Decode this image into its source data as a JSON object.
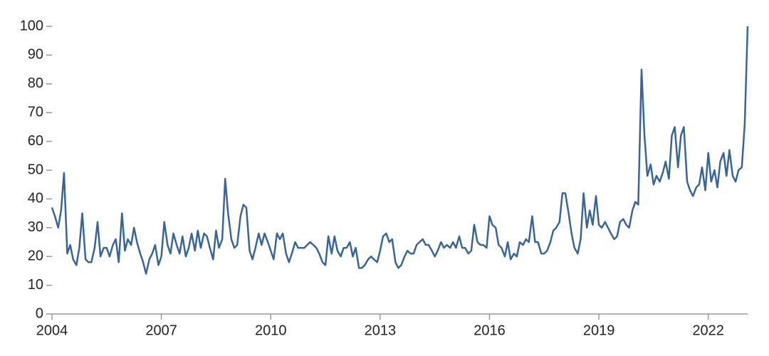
{
  "chart_data": {
    "type": "line",
    "color": "#37659a",
    "x": [
      2004,
      2004.08,
      2004.17,
      2004.25,
      2004.33,
      2004.42,
      2004.5,
      2004.58,
      2004.67,
      2004.75,
      2004.83,
      2004.92,
      2005,
      2005.08,
      2005.17,
      2005.25,
      2005.33,
      2005.42,
      2005.5,
      2005.58,
      2005.67,
      2005.75,
      2005.83,
      2005.92,
      2006,
      2006.08,
      2006.17,
      2006.25,
      2006.33,
      2006.42,
      2006.5,
      2006.58,
      2006.67,
      2006.75,
      2006.83,
      2006.92,
      2007,
      2007.08,
      2007.17,
      2007.25,
      2007.33,
      2007.42,
      2007.5,
      2007.58,
      2007.67,
      2007.75,
      2007.83,
      2007.92,
      2008,
      2008.08,
      2008.17,
      2008.25,
      2008.33,
      2008.42,
      2008.5,
      2008.58,
      2008.67,
      2008.75,
      2008.83,
      2008.92,
      2009,
      2009.08,
      2009.17,
      2009.25,
      2009.33,
      2009.42,
      2009.5,
      2009.58,
      2009.67,
      2009.75,
      2009.83,
      2009.92,
      2010,
      2010.08,
      2010.17,
      2010.25,
      2010.33,
      2010.42,
      2010.5,
      2010.58,
      2010.67,
      2010.75,
      2010.83,
      2010.92,
      2011,
      2011.08,
      2011.17,
      2011.25,
      2011.33,
      2011.42,
      2011.5,
      2011.58,
      2011.67,
      2011.75,
      2011.83,
      2011.92,
      2012,
      2012.08,
      2012.17,
      2012.25,
      2012.33,
      2012.42,
      2012.5,
      2012.58,
      2012.67,
      2012.75,
      2012.83,
      2012.92,
      2013,
      2013.08,
      2013.17,
      2013.25,
      2013.33,
      2013.42,
      2013.5,
      2013.58,
      2013.67,
      2013.75,
      2013.83,
      2013.92,
      2014,
      2014.08,
      2014.17,
      2014.25,
      2014.33,
      2014.42,
      2014.5,
      2014.58,
      2014.67,
      2014.75,
      2014.83,
      2014.92,
      2015,
      2015.08,
      2015.17,
      2015.25,
      2015.33,
      2015.42,
      2015.5,
      2015.58,
      2015.67,
      2015.75,
      2015.83,
      2015.92,
      2016,
      2016.08,
      2016.17,
      2016.25,
      2016.33,
      2016.42,
      2016.5,
      2016.58,
      2016.67,
      2016.75,
      2016.83,
      2016.92,
      2017,
      2017.08,
      2017.17,
      2017.25,
      2017.33,
      2017.42,
      2017.5,
      2017.58,
      2017.67,
      2017.75,
      2017.83,
      2017.92,
      2018,
      2018.08,
      2018.17,
      2018.25,
      2018.33,
      2018.42,
      2018.5,
      2018.58,
      2018.67,
      2018.75,
      2018.83,
      2018.92,
      2019,
      2019.08,
      2019.17,
      2019.25,
      2019.33,
      2019.42,
      2019.5,
      2019.58,
      2019.67,
      2019.75,
      2019.83,
      2019.92,
      2020,
      2020.08,
      2020.17,
      2020.25,
      2020.33,
      2020.42,
      2020.5,
      2020.58,
      2020.67,
      2020.75,
      2020.83,
      2020.92,
      2021,
      2021.08,
      2021.17,
      2021.25,
      2021.33,
      2021.42,
      2021.5,
      2021.58,
      2021.67,
      2021.75,
      2021.83,
      2021.92,
      2022,
      2022.08,
      2022.17,
      2022.25,
      2022.33,
      2022.42,
      2022.5,
      2022.58,
      2022.67,
      2022.75,
      2022.83,
      2022.92,
      2023,
      2023.08
    ],
    "values": [
      37,
      34,
      30,
      36,
      49,
      21,
      24,
      19,
      17,
      23,
      35,
      19,
      18,
      18,
      23,
      32,
      20,
      23,
      23,
      20,
      24,
      26,
      18,
      35,
      22,
      26,
      24,
      30,
      25,
      21,
      18,
      14,
      19,
      21,
      24,
      17,
      20,
      32,
      24,
      21,
      28,
      24,
      21,
      27,
      20,
      23,
      28,
      22,
      29,
      23,
      28,
      27,
      23,
      19,
      29,
      23,
      26,
      47,
      35,
      26,
      23,
      24,
      34,
      38,
      37,
      22,
      19,
      23,
      28,
      24,
      28,
      25,
      22,
      19,
      28,
      26,
      28,
      21,
      18,
      21,
      25,
      23,
      23,
      23,
      24,
      25,
      24,
      23,
      21,
      18,
      17,
      27,
      21,
      27,
      22,
      20,
      23,
      23,
      25,
      20,
      23,
      16,
      16,
      17,
      19,
      20,
      19,
      18,
      22,
      27,
      28,
      25,
      26,
      18,
      16,
      17,
      20,
      22,
      21,
      21,
      24,
      25,
      26,
      24,
      24,
      22,
      20,
      22,
      25,
      23,
      24,
      23,
      25,
      23,
      27,
      23,
      23,
      21,
      22,
      31,
      25,
      24,
      24,
      23,
      34,
      31,
      30,
      24,
      23,
      20,
      25,
      19,
      21,
      20,
      25,
      24,
      26,
      25,
      34,
      25,
      25,
      21,
      21,
      22,
      25,
      29,
      30,
      32,
      42,
      42,
      35,
      28,
      23,
      21,
      26,
      42,
      30,
      36,
      31,
      41,
      31,
      30,
      32,
      30,
      28,
      26,
      27,
      32,
      33,
      31,
      30,
      36,
      39,
      38,
      85,
      62,
      48,
      52,
      45,
      48,
      46,
      49,
      53,
      47,
      62,
      65,
      51,
      62,
      65,
      46,
      43,
      41,
      44,
      45,
      51,
      43,
      56,
      46,
      50,
      44,
      53,
      56,
      48,
      57,
      48,
      46,
      50,
      51,
      66,
      100
    ],
    "xlim": [
      2004,
      2023.08
    ],
    "xticks": [
      2004,
      2007,
      2010,
      2013,
      2016,
      2019,
      2022
    ],
    "ylim": [
      0,
      100
    ],
    "yticks": [
      0,
      10,
      20,
      30,
      40,
      50,
      60,
      70,
      80,
      90,
      100
    ]
  }
}
